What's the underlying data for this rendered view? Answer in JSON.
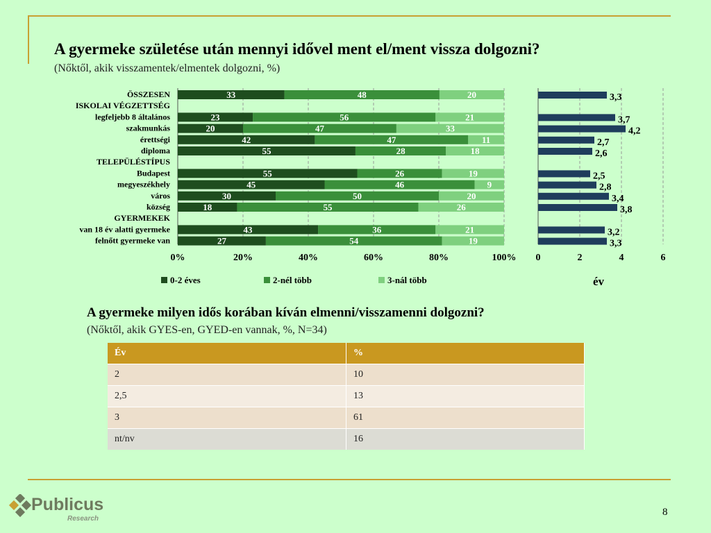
{
  "title": "A gyermeke születése után mennyi idővel ment el/ment vissza dolgozni?",
  "subtitle": "(Nőktől, akik visszamentek/elmentek dolgozni, %)",
  "chart_data": [
    {
      "type": "bar",
      "stacked": "percent",
      "orientation": "horizontal",
      "rows": [
        {
          "label": "ÖSSZESEN",
          "header": false,
          "values": [
            33,
            48,
            20
          ]
        },
        {
          "label": "ISKOLAI VÉGZETTSÉG",
          "header": true
        },
        {
          "label": "legfeljebb 8 általános",
          "header": false,
          "values": [
            23,
            56,
            21
          ]
        },
        {
          "label": "szakmunkás",
          "header": false,
          "values": [
            20,
            47,
            33
          ]
        },
        {
          "label": "érettségi",
          "header": false,
          "values": [
            42,
            47,
            11
          ]
        },
        {
          "label": "diploma",
          "header": false,
          "values": [
            55,
            28,
            18
          ]
        },
        {
          "label": "TELEPÜLÉSTÍPUS",
          "header": true
        },
        {
          "label": "Budapest",
          "header": false,
          "values": [
            55,
            26,
            19
          ]
        },
        {
          "label": "megyeszékhely",
          "header": false,
          "values": [
            45,
            46,
            9
          ]
        },
        {
          "label": "város",
          "header": false,
          "values": [
            30,
            50,
            20
          ]
        },
        {
          "label": "község",
          "header": false,
          "values": [
            18,
            55,
            26
          ]
        },
        {
          "label": "GYERMEKEK",
          "header": true
        },
        {
          "label": "van 18 év alatti gyermeke",
          "header": false,
          "values": [
            43,
            36,
            21
          ]
        },
        {
          "label": "felnőtt gyermeke van",
          "header": false,
          "values": [
            27,
            54,
            19
          ]
        }
      ],
      "series": [
        {
          "name": "0-2 éves",
          "color": "#1e4d1e"
        },
        {
          "name": "2-nél több",
          "color": "#3a8f3a"
        },
        {
          "name": "3-nál több",
          "color": "#7fd07f"
        }
      ],
      "xticks": [
        "0%",
        "20%",
        "40%",
        "60%",
        "80%",
        "100%"
      ],
      "xlim": [
        0,
        100
      ]
    },
    {
      "type": "bar",
      "orientation": "horizontal",
      "values": [
        3.3,
        null,
        3.7,
        4.2,
        2.7,
        2.6,
        null,
        2.5,
        2.8,
        3.4,
        3.8,
        null,
        3.2,
        3.3
      ],
      "labels": [
        "3,3",
        "",
        "3,7",
        "4,2",
        "2,7",
        "2,6",
        "",
        "2,5",
        "2,8",
        "3,4",
        "3,8",
        "",
        "3,2",
        "3,3"
      ],
      "color": "#1f3d5c",
      "xticks": [
        "0",
        "2",
        "4",
        "6"
      ],
      "xlim": [
        0,
        6
      ],
      "xlabel": "év"
    }
  ],
  "table": {
    "title": "A gyermeke milyen idős korában kíván elmenni/visszamenni dolgozni?",
    "subtitle": "(Nőktől, akik GYES-en, GYED-en vannak, %, N=34)",
    "headers": [
      "Év",
      "%"
    ],
    "rows": [
      [
        "2",
        "10"
      ],
      [
        "2,5",
        "13"
      ],
      [
        "3",
        "61"
      ],
      [
        "nt/nv",
        "16"
      ]
    ]
  },
  "logo": {
    "name": "Publicus",
    "sub": "Research"
  },
  "page_number": "8"
}
